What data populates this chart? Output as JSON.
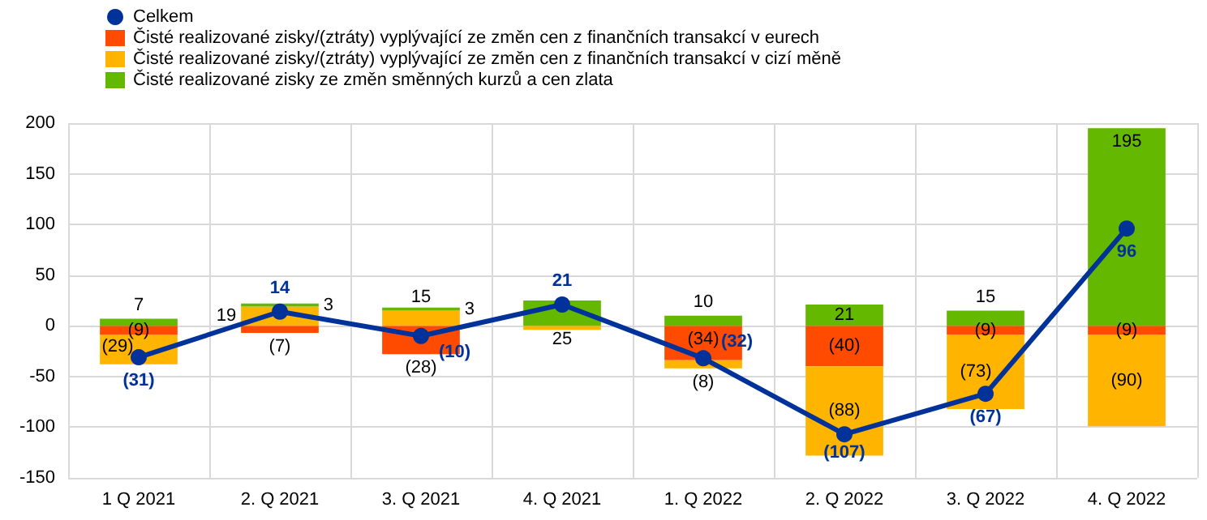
{
  "chart_data": {
    "type": "bar",
    "stacked": true,
    "categories": [
      "1 Q 2021",
      "2. Q 2021",
      "3. Q 2021",
      "4. Q 2021",
      "1. Q 2022",
      "2. Q 2022",
      "3. Q 2022",
      "4. Q 2022"
    ],
    "series": [
      {
        "name": "Celkem",
        "type": "line",
        "color": "#003299",
        "marker": "circle",
        "values": [
          -31,
          14,
          -10,
          21,
          -32,
          -107,
          -67,
          96
        ],
        "value_labels": [
          "(31)",
          "14",
          "(10)",
          "21",
          "(32)",
          "(107)",
          "(67)",
          "96"
        ]
      },
      {
        "name": "Čisté realizované zisky/(ztráty) vyplývající ze změn cen z finančních transakcí v eurech",
        "color": "#ff4b00",
        "values": [
          -9,
          -7,
          -28,
          null,
          -34,
          -40,
          -9,
          -9
        ],
        "value_labels": [
          "(9)",
          "(7)",
          "(28)",
          null,
          "(34)",
          "(40)",
          "(9)",
          "(9)"
        ]
      },
      {
        "name": "Čisté realizované zisky/(ztráty) vyplývající ze změn cen z finančních transakcí v cizí měně",
        "color": "#ffb400",
        "values": [
          -29,
          19,
          15,
          -4,
          -8,
          -88,
          -73,
          -90
        ],
        "value_labels": [
          "(29)",
          "19",
          "15",
          null,
          "(8)",
          "(88)",
          "(73)",
          "(90)"
        ]
      },
      {
        "name": "Čisté realizované zisky ze změn směnných kurzů a cen zlata",
        "color": "#65b800",
        "values": [
          7,
          3,
          3,
          25,
          10,
          21,
          15,
          195
        ],
        "value_labels": [
          "7",
          "3",
          "3",
          "25",
          "10",
          "21",
          "15",
          "195"
        ]
      }
    ],
    "ylim": [
      -150,
      200
    ],
    "yticks": [
      -150,
      -100,
      -50,
      0,
      50,
      100,
      150,
      200
    ],
    "grid": true,
    "legend": "top left"
  }
}
